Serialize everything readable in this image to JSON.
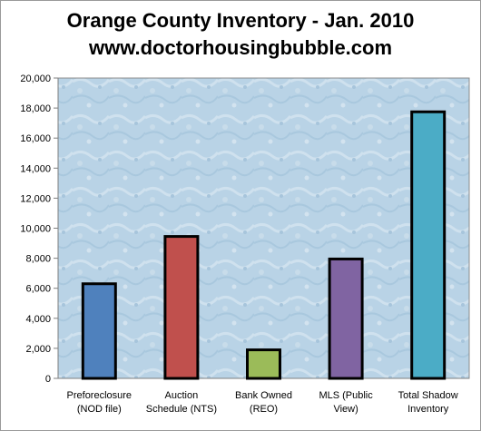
{
  "chart_data": {
    "type": "bar",
    "title": "Orange County Inventory - Jan. 2010",
    "subtitle": "www.doctorhousingbubble.com",
    "categories": [
      [
        "Preforeclosure",
        "(NOD file)"
      ],
      [
        "Auction",
        "Schedule (NTS)"
      ],
      [
        "Bank Owned",
        "(REO)"
      ],
      [
        "MLS (Public",
        "View)"
      ],
      [
        "Total Shadow",
        "Inventory"
      ]
    ],
    "values": [
      6300,
      9450,
      1900,
      7950,
      17750
    ],
    "colors": [
      "#4f81bd",
      "#c0504d",
      "#9bbb59",
      "#8064a2",
      "#4bacc6"
    ],
    "ylim": [
      0,
      20000
    ],
    "yticks": [
      "0",
      "2,000",
      "4,000",
      "6,000",
      "8,000",
      "10,000",
      "12,000",
      "14,000",
      "16,000",
      "18,000",
      "20,000"
    ],
    "xlabel": "",
    "ylabel": "",
    "grid": false,
    "legend": "none"
  }
}
